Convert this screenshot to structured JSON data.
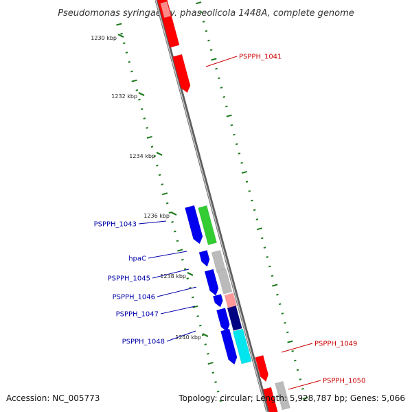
{
  "title": "Pseudomonas syringae pv. phaseolicola 1448A, complete genome",
  "footer": {
    "accession": "Accession: NC_005773",
    "summary": "Topology: circular; Length: 5,928,787 bp; Genes: 5,066"
  },
  "colors": {
    "backbone": "#8a8a8a",
    "tick": "#1e7a1e",
    "forward_label": "#cc0000",
    "reverse_label": "#0000aa"
  },
  "ruler": {
    "labels": [
      "1230 kbp",
      "1232 kbp",
      "1234 kbp",
      "1236 kbp",
      "1238 kbp",
      "1240 kbp"
    ]
  },
  "genes": [
    {
      "name": "PSPPH_1041",
      "strand": "forward",
      "color": "#ff0000"
    },
    {
      "name": "PSPPH_1043",
      "strand": "reverse",
      "color": "#33cc33"
    },
    {
      "name": "hpaC",
      "strand": "reverse",
      "color": "#bbbbbb"
    },
    {
      "name": "PSPPH_1045",
      "strand": "reverse",
      "color": "#bbbbbb"
    },
    {
      "name": "PSPPH_1046",
      "strand": "reverse",
      "color": "#ff9999"
    },
    {
      "name": "PSPPH_1047",
      "strand": "reverse",
      "color": "#000080"
    },
    {
      "name": "PSPPH_1048",
      "strand": "reverse",
      "color": "#00e5ee"
    },
    {
      "name": "PSPPH_1049",
      "strand": "forward",
      "color": "#ff0000"
    },
    {
      "name": "PSPPH_1050",
      "strand": "forward",
      "color": "#ff0000"
    }
  ]
}
